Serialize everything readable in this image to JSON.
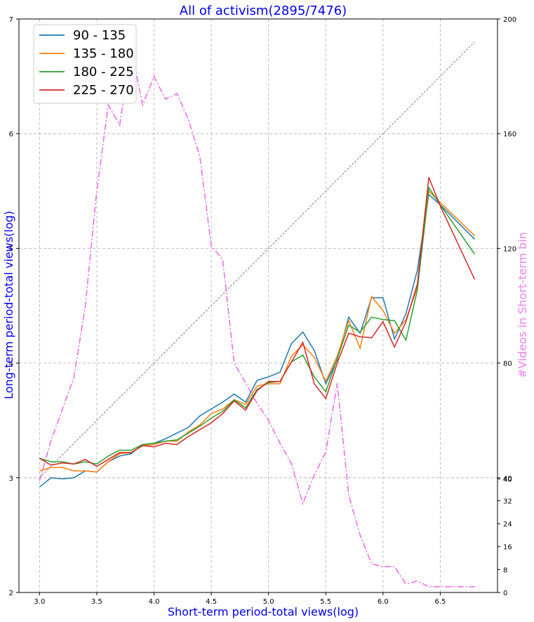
{
  "chart_data": {
    "type": "line",
    "title": "All of activism(2895/7476)",
    "xlabel": "Short-term period-total views(log)",
    "ylabel": "Long-term period-total views(log)",
    "y2label": "#Videos in Short-term bin",
    "xlim": [
      2.82,
      7.0
    ],
    "ylim": [
      2,
      7
    ],
    "y2lim": [
      0,
      200
    ],
    "xticks": [
      "3.0",
      "3.5",
      "4.0",
      "4.5",
      "5.0",
      "5.5",
      "6.0",
      "6.5"
    ],
    "xtick_values": [
      3.0,
      3.5,
      4.0,
      4.5,
      5.0,
      5.5,
      6.0,
      6.5
    ],
    "yticks": [
      "2",
      "3",
      "4",
      "5",
      "6",
      "7"
    ],
    "ytick_values": [
      2,
      3,
      4,
      5,
      6,
      7
    ],
    "y2ticks": [
      "0",
      "8",
      "16",
      "24",
      "32",
      "40",
      "40",
      "80",
      "120",
      "160",
      "200"
    ],
    "y2tick_values": [
      0,
      8,
      16,
      24,
      32,
      39.6,
      40,
      80,
      120,
      160,
      200
    ],
    "grid": true,
    "legend_position": "top-left",
    "title_color": "#0000ee",
    "label_color": "#0000ee",
    "y2label_color": "#ee82ee",
    "x": [
      3.0,
      3.1,
      3.2,
      3.3,
      3.4,
      3.5,
      3.6,
      3.7,
      3.8,
      3.9,
      4.0,
      4.1,
      4.2,
      4.3,
      4.4,
      4.5,
      4.6,
      4.7,
      4.8,
      4.9,
      5.0,
      5.1,
      5.2,
      5.3,
      5.4,
      5.5,
      5.6,
      5.7,
      5.8,
      5.9,
      6.0,
      6.1,
      6.2,
      6.3,
      6.4,
      6.5,
      6.8
    ],
    "series": [
      {
        "name": "90 - 135",
        "color": "#1f77b4",
        "values": [
          2.92,
          3.0,
          2.99,
          3.0,
          3.06,
          3.05,
          3.14,
          3.19,
          3.21,
          3.29,
          3.3,
          3.34,
          3.39,
          3.44,
          3.54,
          3.6,
          3.66,
          3.73,
          3.66,
          3.85,
          3.88,
          3.92,
          4.17,
          4.27,
          4.11,
          3.82,
          4.03,
          4.4,
          4.26,
          4.57,
          4.57,
          4.21,
          4.43,
          4.81,
          5.47,
          5.38,
          5.08
        ]
      },
      {
        "name": "135 - 180",
        "color": "#ff7f0e",
        "values": [
          3.06,
          3.09,
          3.09,
          3.06,
          3.06,
          3.05,
          3.14,
          3.21,
          3.22,
          3.28,
          3.29,
          3.32,
          3.32,
          3.4,
          3.46,
          3.56,
          3.6,
          3.68,
          3.64,
          3.8,
          3.82,
          3.82,
          4.06,
          4.16,
          4.05,
          3.84,
          4.06,
          4.37,
          4.13,
          4.58,
          4.46,
          4.26,
          4.38,
          4.66,
          5.5,
          5.4,
          5.11
        ]
      },
      {
        "name": "180 - 225",
        "color": "#2ca02c",
        "values": [
          3.17,
          3.14,
          3.14,
          3.12,
          3.14,
          3.12,
          3.19,
          3.24,
          3.24,
          3.29,
          3.3,
          3.32,
          3.33,
          3.39,
          3.45,
          3.52,
          3.58,
          3.68,
          3.61,
          3.77,
          3.83,
          3.84,
          4.01,
          4.07,
          3.88,
          3.75,
          4.04,
          4.33,
          4.27,
          4.4,
          4.38,
          4.37,
          4.2,
          4.64,
          5.53,
          5.38,
          4.95
        ]
      },
      {
        "name": "225 - 270",
        "color": "#d62728",
        "values": [
          3.17,
          3.11,
          3.13,
          3.12,
          3.16,
          3.1,
          3.16,
          3.22,
          3.22,
          3.28,
          3.27,
          3.3,
          3.29,
          3.36,
          3.42,
          3.48,
          3.56,
          3.67,
          3.59,
          3.76,
          3.84,
          3.84,
          4.01,
          4.18,
          3.82,
          3.69,
          4.0,
          4.26,
          4.23,
          4.22,
          4.36,
          4.14,
          4.36,
          4.69,
          5.62,
          5.37,
          4.73
        ]
      }
    ],
    "reference_line": {
      "x": [
        3.0,
        6.8
      ],
      "y": [
        3.0,
        6.8
      ],
      "color": "#808080"
    },
    "count_series": {
      "axis": "y2",
      "color": "#ee66ee",
      "x": [
        3.0,
        3.1,
        3.2,
        3.3,
        3.4,
        3.5,
        3.6,
        3.7,
        3.8,
        3.9,
        4.0,
        4.1,
        4.2,
        4.3,
        4.4,
        4.5,
        4.6,
        4.7,
        4.8,
        4.9,
        5.0,
        5.1,
        5.2,
        5.3,
        5.4,
        5.5,
        5.6,
        5.7,
        5.8,
        5.9,
        6.0,
        6.1,
        6.2,
        6.3,
        6.4,
        6.5,
        6.8
      ],
      "values": [
        39,
        53,
        64,
        75,
        100,
        140,
        170,
        163,
        190,
        170,
        180,
        172,
        174,
        165,
        152,
        121,
        116,
        80,
        73,
        66,
        60,
        52,
        45,
        31,
        41,
        49,
        73,
        34,
        20,
        10,
        9,
        9,
        3,
        4,
        2,
        2,
        2
      ]
    }
  }
}
